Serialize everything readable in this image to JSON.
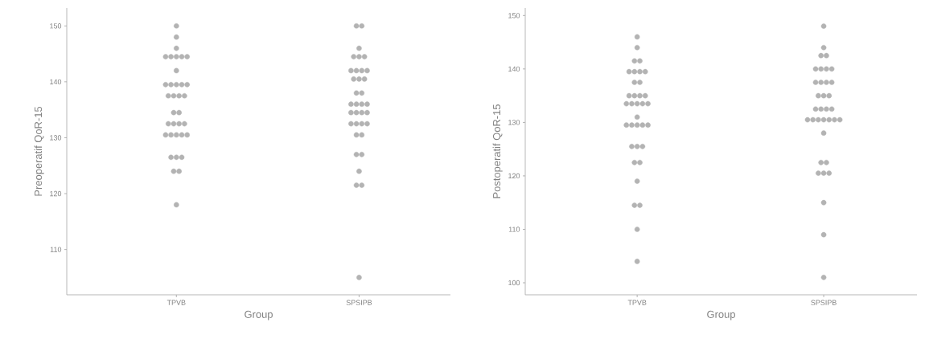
{
  "chart_data": [
    {
      "type": "scatter",
      "xlabel": "Group",
      "ylabel": "Preoperatif QoR-15",
      "categories": [
        "TPVB",
        "SPSIPB"
      ],
      "ylim": [
        101.9,
        153.2
      ],
      "yticks": [
        110,
        120,
        130,
        140,
        150
      ],
      "grid": false,
      "marker": "circle",
      "series": [
        {
          "color": "#b3b3b3",
          "x": [
            "TPVB",
            "TPVB",
            "TPVB",
            "TPVB",
            "TPVB",
            "TPVB",
            "TPVB",
            "TPVB",
            "TPVB",
            "TPVB",
            "TPVB",
            "TPVB",
            "TPVB",
            "TPVB",
            "TPVB",
            "TPVB",
            "TPVB",
            "TPVB",
            "TPVB",
            "TPVB",
            "TPVB",
            "TPVB",
            "TPVB",
            "TPVB",
            "TPVB",
            "TPVB",
            "TPVB",
            "TPVB",
            "TPVB",
            "TPVB",
            "TPVB",
            "TPVB",
            "TPVB",
            "TPVB",
            "TPVB"
          ],
          "values": [
            150,
            148,
            146,
            144.5,
            144.5,
            144.5,
            144.5,
            144.5,
            142,
            139.5,
            139.5,
            139.5,
            139.5,
            139.5,
            137.5,
            137.5,
            137.5,
            137.5,
            134.5,
            134.5,
            132.5,
            132.5,
            132.5,
            132.5,
            130.5,
            130.5,
            130.5,
            130.5,
            130.5,
            126.5,
            126.5,
            126.5,
            124,
            124,
            118
          ]
        },
        {
          "color": "#b3b3b3",
          "x": [
            "SPSIPB",
            "SPSIPB",
            "SPSIPB",
            "SPSIPB",
            "SPSIPB",
            "SPSIPB",
            "SPSIPB",
            "SPSIPB",
            "SPSIPB",
            "SPSIPB",
            "SPSIPB",
            "SPSIPB",
            "SPSIPB",
            "SPSIPB",
            "SPSIPB",
            "SPSIPB",
            "SPSIPB",
            "SPSIPB",
            "SPSIPB",
            "SPSIPB",
            "SPSIPB",
            "SPSIPB",
            "SPSIPB",
            "SPSIPB",
            "SPSIPB",
            "SPSIPB",
            "SPSIPB",
            "SPSIPB",
            "SPSIPB",
            "SPSIPB",
            "SPSIPB",
            "SPSIPB",
            "SPSIPB",
            "SPSIPB",
            "SPSIPB"
          ],
          "values": [
            150,
            150,
            146,
            144.5,
            144.5,
            144.5,
            142,
            142,
            142,
            142,
            140.5,
            140.5,
            140.5,
            138,
            138,
            136,
            136,
            136,
            136,
            134.5,
            134.5,
            134.5,
            134.5,
            132.5,
            132.5,
            132.5,
            132.5,
            130.5,
            130.5,
            127,
            127,
            124,
            121.5,
            121.5,
            105
          ]
        }
      ]
    },
    {
      "type": "scatter",
      "xlabel": "Group",
      "ylabel": "Postoperatif QoR-15",
      "categories": [
        "TPVB",
        "SPSIPB"
      ],
      "ylim": [
        97.75,
        151.4
      ],
      "yticks": [
        100,
        110,
        120,
        130,
        140,
        150
      ],
      "grid": false,
      "marker": "circle",
      "series": [
        {
          "color": "#b3b3b3",
          "x": [
            "TPVB",
            "TPVB",
            "TPVB",
            "TPVB",
            "TPVB",
            "TPVB",
            "TPVB",
            "TPVB",
            "TPVB",
            "TPVB",
            "TPVB",
            "TPVB",
            "TPVB",
            "TPVB",
            "TPVB",
            "TPVB",
            "TPVB",
            "TPVB",
            "TPVB",
            "TPVB",
            "TPVB",
            "TPVB",
            "TPVB",
            "TPVB",
            "TPVB",
            "TPVB",
            "TPVB",
            "TPVB",
            "TPVB",
            "TPVB",
            "TPVB",
            "TPVB",
            "TPVB",
            "TPVB",
            "TPVB"
          ],
          "values": [
            146,
            144,
            141.5,
            141.5,
            139.5,
            139.5,
            139.5,
            139.5,
            137.5,
            137.5,
            135,
            135,
            135,
            135,
            133.5,
            133.5,
            133.5,
            133.5,
            133.5,
            131,
            129.5,
            129.5,
            129.5,
            129.5,
            129.5,
            125.5,
            125.5,
            125.5,
            122.5,
            122.5,
            119,
            114.5,
            114.5,
            110,
            104
          ]
        },
        {
          "color": "#b3b3b3",
          "x": [
            "SPSIPB",
            "SPSIPB",
            "SPSIPB",
            "SPSIPB",
            "SPSIPB",
            "SPSIPB",
            "SPSIPB",
            "SPSIPB",
            "SPSIPB",
            "SPSIPB",
            "SPSIPB",
            "SPSIPB",
            "SPSIPB",
            "SPSIPB",
            "SPSIPB",
            "SPSIPB",
            "SPSIPB",
            "SPSIPB",
            "SPSIPB",
            "SPSIPB",
            "SPSIPB",
            "SPSIPB",
            "SPSIPB",
            "SPSIPB",
            "SPSIPB",
            "SPSIPB",
            "SPSIPB",
            "SPSIPB",
            "SPSIPB",
            "SPSIPB",
            "SPSIPB",
            "SPSIPB",
            "SPSIPB",
            "SPSIPB",
            "SPSIPB"
          ],
          "values": [
            148,
            144,
            142.5,
            142.5,
            140,
            140,
            140,
            140,
            137.5,
            137.5,
            137.5,
            137.5,
            135,
            135,
            135,
            132.5,
            132.5,
            132.5,
            132.5,
            130.5,
            130.5,
            130.5,
            130.5,
            130.5,
            130.5,
            130.5,
            128,
            122.5,
            122.5,
            120.5,
            120.5,
            120.5,
            115,
            109,
            101
          ]
        }
      ]
    }
  ]
}
